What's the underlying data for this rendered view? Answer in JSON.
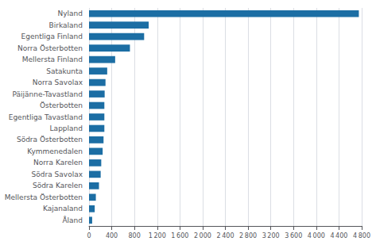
{
  "chart_data": {
    "type": "bar",
    "orientation": "horizontal",
    "categories": [
      "Åland",
      "Kajanaland",
      "Mellersta Österbotten",
      "Södra Karelen",
      "Södra Savolax",
      "Norra Karelen",
      "Kymmenedalen",
      "Södra Österbotten",
      "Lappland",
      "Egentliga Tavastland",
      "Österbotten",
      "Päijänne-Tavastland",
      "Norra Savolax",
      "Satakunta",
      "Mellersta Finland",
      "Norra Österbotten",
      "Egentliga Finland",
      "Birkaland",
      "Nyland"
    ],
    "values": [
      55,
      100,
      120,
      175,
      205,
      215,
      240,
      255,
      270,
      270,
      270,
      275,
      290,
      320,
      460,
      720,
      970,
      1050,
      4750
    ],
    "color": "#1c6ea4",
    "xlim": [
      0,
      4800
    ],
    "xticks": [
      0,
      400,
      800,
      {
        "value": 1200,
        "label": "1 200"
      },
      {
        "value": 1600,
        "label": "1 600"
      },
      {
        "value": 2000,
        "label": "2 000"
      },
      {
        "value": 2400,
        "label": "2 400"
      },
      {
        "value": 2800,
        "label": "2 800"
      },
      {
        "value": 3200,
        "label": "3 200"
      },
      {
        "value": 3600,
        "label": "3 600"
      },
      {
        "value": 4000,
        "label": "4 000"
      },
      {
        "value": 4400,
        "label": "4 400"
      },
      {
        "value": 4800,
        "label": "4 800"
      }
    ],
    "grid": true
  }
}
